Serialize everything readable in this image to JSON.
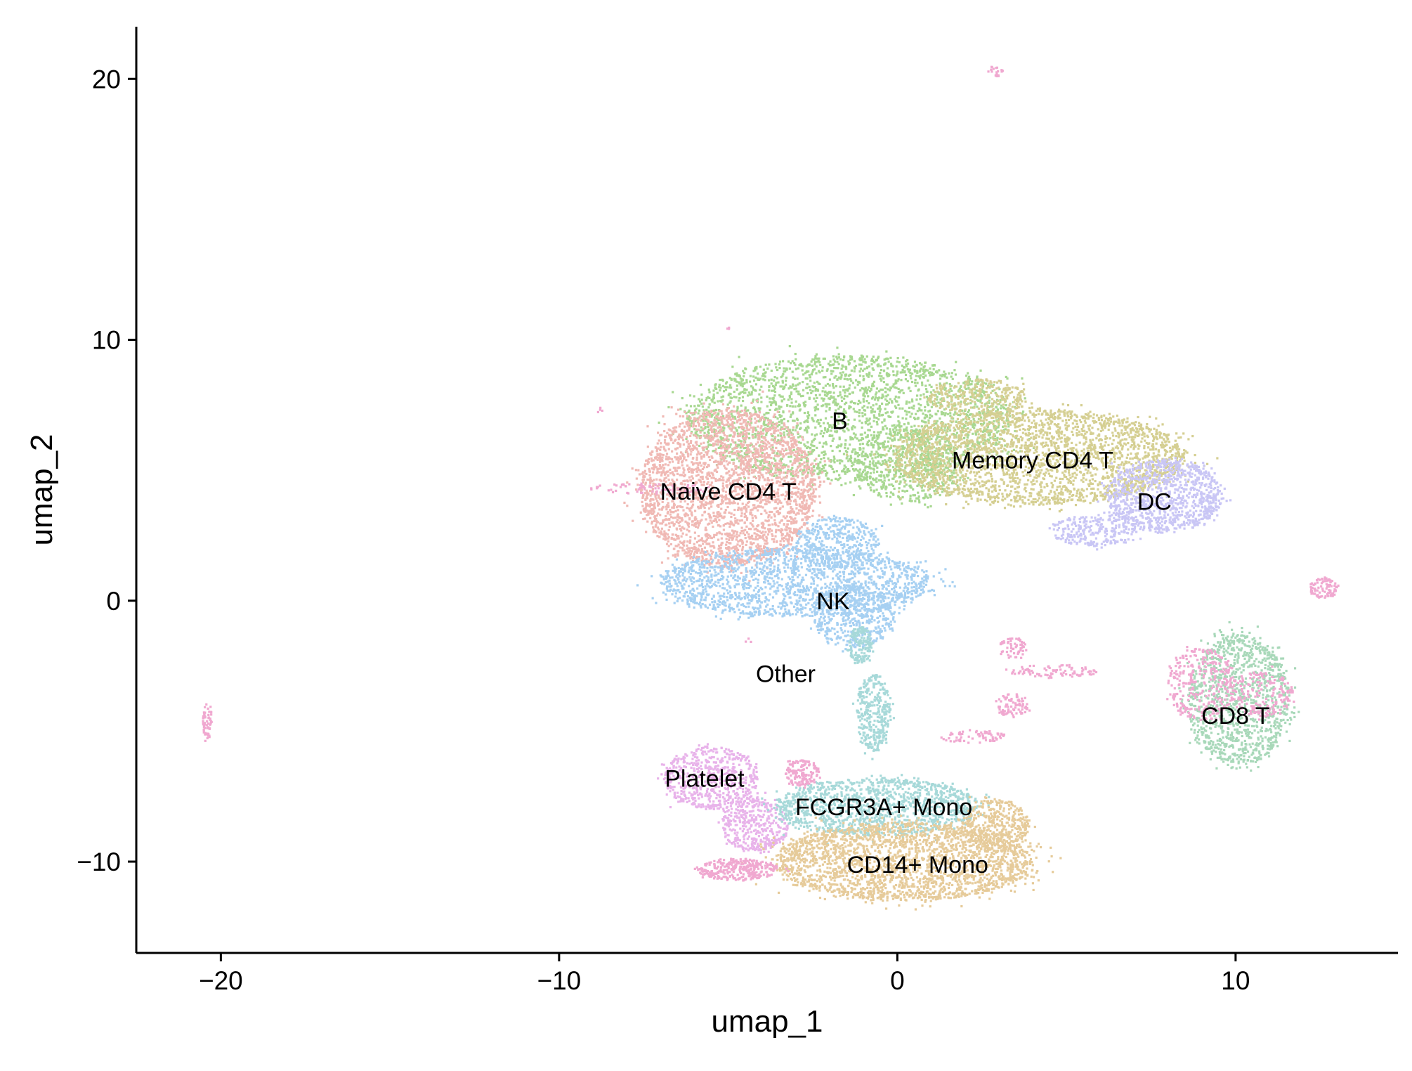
{
  "chart_data": {
    "type": "scatter",
    "xlabel": "umap_1",
    "ylabel": "umap_2",
    "xlim": [
      -22.5,
      14.8
    ],
    "ylim": [
      -13.5,
      22
    ],
    "xticks": [
      {
        "value": -20,
        "label": "−20"
      },
      {
        "value": -10,
        "label": "−10"
      },
      {
        "value": 0,
        "label": "0"
      },
      {
        "value": 10,
        "label": "10"
      }
    ],
    "yticks": [
      {
        "value": -10,
        "label": "−10"
      },
      {
        "value": 0,
        "label": "0"
      },
      {
        "value": 10,
        "label": "10"
      },
      {
        "value": 20,
        "label": "20"
      }
    ],
    "grid": false,
    "clusters": [
      {
        "label": "B",
        "color": "#a8d891",
        "label_x": -1.7,
        "label_y": 6.9,
        "blobs": [
          {
            "cx": -1.4,
            "cy": 7.0,
            "rx": 4.8,
            "ry": 2.4,
            "n": 2600
          },
          {
            "cx": 0.3,
            "cy": 5.2,
            "rx": 1.6,
            "ry": 1.4,
            "n": 500
          }
        ]
      },
      {
        "label": "Memory CD4 T",
        "color": "#d5cf92",
        "label_x": 4.0,
        "label_y": 5.4,
        "blobs": [
          {
            "cx": 4.2,
            "cy": 5.5,
            "rx": 4.3,
            "ry": 1.8,
            "n": 2600
          },
          {
            "cx": 2.4,
            "cy": 7.8,
            "rx": 1.5,
            "ry": 0.7,
            "n": 300
          }
        ]
      },
      {
        "label": "DC",
        "color": "#c9c6f5",
        "label_x": 7.6,
        "label_y": 3.8,
        "blobs": [
          {
            "cx": 7.9,
            "cy": 4.0,
            "rx": 1.7,
            "ry": 1.4,
            "n": 1000
          },
          {
            "cx": 5.8,
            "cy": 2.7,
            "rx": 1.3,
            "ry": 0.6,
            "n": 250
          }
        ]
      },
      {
        "label": "Naive CD4 T",
        "color": "#f0b9b4",
        "label_x": -5.0,
        "label_y": 4.2,
        "blobs": [
          {
            "cx": -5.0,
            "cy": 4.3,
            "rx": 2.6,
            "ry": 3.0,
            "n": 2800
          }
        ]
      },
      {
        "label": "NK",
        "color": "#a6d0f2",
        "label_x": -1.9,
        "label_y": 0.0,
        "blobs": [
          {
            "cx": -3.0,
            "cy": 0.7,
            "rx": 4.0,
            "ry": 1.3,
            "n": 1700
          },
          {
            "cx": -1.3,
            "cy": -0.6,
            "rx": 1.2,
            "ry": 1.2,
            "n": 500
          },
          {
            "cx": -1.8,
            "cy": 2.2,
            "rx": 1.2,
            "ry": 1.0,
            "n": 400
          }
        ]
      },
      {
        "label": "CD8 T",
        "color": "#a8d8b9",
        "label_x": 10.0,
        "label_y": -4.4,
        "blobs": [
          {
            "cx": 10.1,
            "cy": -3.8,
            "rx": 1.5,
            "ry": 2.5,
            "n": 1200
          }
        ]
      },
      {
        "label": "Platelet",
        "color": "#e8b3ea",
        "label_x": -5.7,
        "label_y": -6.8,
        "blobs": [
          {
            "cx": -5.5,
            "cy": -6.8,
            "rx": 1.4,
            "ry": 1.2,
            "n": 600
          },
          {
            "cx": -4.2,
            "cy": -8.6,
            "rx": 1.0,
            "ry": 1.0,
            "n": 400
          }
        ]
      },
      {
        "label": "FCGR3A+ Mono",
        "color": "#a7d9d9",
        "label_x": -0.4,
        "label_y": -7.9,
        "blobs": [
          {
            "cx": -0.6,
            "cy": -7.9,
            "rx": 3.0,
            "ry": 1.1,
            "n": 1300
          },
          {
            "cx": -0.7,
            "cy": -4.3,
            "rx": 0.5,
            "ry": 1.5,
            "n": 350
          },
          {
            "cx": -1.1,
            "cy": -1.7,
            "rx": 0.35,
            "ry": 0.7,
            "n": 150
          }
        ]
      },
      {
        "label": "CD14+ Mono",
        "color": "#e6cb9a",
        "label_x": 0.6,
        "label_y": -10.1,
        "blobs": [
          {
            "cx": 0.2,
            "cy": -10.0,
            "rx": 3.8,
            "ry": 1.5,
            "n": 2400
          },
          {
            "cx": 2.9,
            "cy": -8.6,
            "rx": 1.0,
            "ry": 1.0,
            "n": 400
          }
        ]
      },
      {
        "label": "Other",
        "color": "#f0a8d0",
        "label_x": -3.3,
        "label_y": -2.8,
        "blobs": [
          {
            "cx": 10.8,
            "cy": -3.6,
            "rx": 0.9,
            "ry": 0.9,
            "n": 180
          },
          {
            "cx": 9.0,
            "cy": -3.2,
            "rx": 1.0,
            "ry": 1.4,
            "n": 320
          },
          {
            "cx": 12.6,
            "cy": 0.5,
            "rx": 0.4,
            "ry": 0.4,
            "n": 90
          },
          {
            "cx": 3.4,
            "cy": -4.0,
            "rx": 0.5,
            "ry": 0.45,
            "n": 90
          },
          {
            "cx": 4.6,
            "cy": -2.7,
            "rx": 1.3,
            "ry": 0.25,
            "n": 90
          },
          {
            "cx": 3.4,
            "cy": -1.8,
            "rx": 0.4,
            "ry": 0.4,
            "n": 60
          },
          {
            "cx": 2.2,
            "cy": -5.2,
            "rx": 1.0,
            "ry": 0.25,
            "n": 70
          },
          {
            "cx": -4.7,
            "cy": -10.3,
            "rx": 1.2,
            "ry": 0.4,
            "n": 300
          },
          {
            "cx": -2.8,
            "cy": -6.6,
            "rx": 0.5,
            "ry": 0.5,
            "n": 140
          },
          {
            "cx": -7.3,
            "cy": 4.3,
            "rx": 1.8,
            "ry": 0.2,
            "n": 70
          },
          {
            "cx": -20.4,
            "cy": -4.6,
            "rx": 0.13,
            "ry": 0.7,
            "n": 60
          },
          {
            "cx": 2.9,
            "cy": 20.3,
            "rx": 0.25,
            "ry": 0.2,
            "n": 20
          },
          {
            "cx": -5.0,
            "cy": 10.4,
            "rx": 0.05,
            "ry": 0.08,
            "n": 3
          },
          {
            "cx": -8.8,
            "cy": 7.3,
            "rx": 0.07,
            "ry": 0.1,
            "n": 4
          },
          {
            "cx": -4.4,
            "cy": -1.5,
            "rx": 0.1,
            "ry": 0.1,
            "n": 3
          }
        ]
      }
    ]
  }
}
